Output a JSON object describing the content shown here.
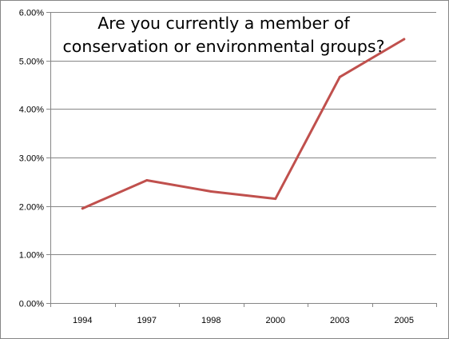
{
  "chart_data": {
    "type": "line",
    "title_lines": [
      "Are you currently a member of",
      "conservation or environmental groups?"
    ],
    "categories": [
      "1994",
      "1997",
      "1998",
      "2000",
      "2003",
      "2005"
    ],
    "values": [
      0.0195,
      0.0253,
      0.023,
      0.0215,
      0.0466,
      0.0544
    ],
    "y_tick_values": [
      0,
      0.01,
      0.02,
      0.03,
      0.04,
      0.05,
      0.06
    ],
    "y_tick_labels": [
      "0.00%",
      "1.00%",
      "2.00%",
      "3.00%",
      "4.00%",
      "5.00%",
      "6.00%"
    ],
    "ylim": [
      0,
      0.06
    ],
    "xlabel": "",
    "ylabel": "",
    "grid": true,
    "legend": "none",
    "line_color": "#C0504D",
    "gridline_color": "#868686"
  }
}
